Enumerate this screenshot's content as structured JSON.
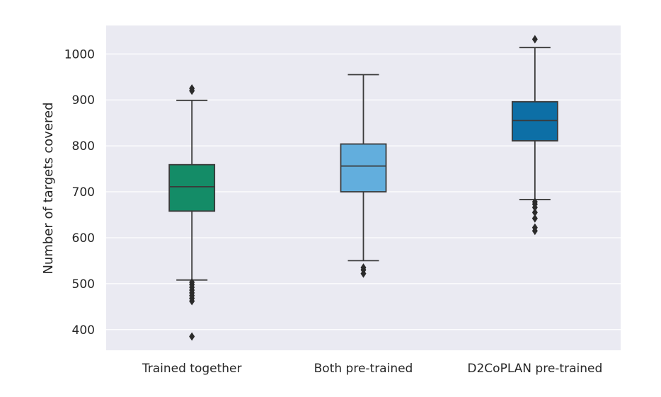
{
  "chart_data": {
    "type": "box",
    "title": "",
    "xlabel": "",
    "ylabel": "Number of targets covered",
    "ylim": [
      355,
      1062
    ],
    "yticks": [
      400,
      500,
      600,
      700,
      800,
      900,
      1000
    ],
    "grid": true,
    "legend": "none",
    "categories": [
      "Trained together",
      "Both pre-trained",
      "D2CoPLAN pre-trained"
    ],
    "boxes": [
      {
        "category": "Trained together",
        "whisker_low": 508,
        "q1": 658,
        "median": 711,
        "q3": 759,
        "whisker_high": 899,
        "outliers": [
          385,
          462,
          468,
          474,
          480,
          486,
          492,
          498,
          503,
          920,
          925
        ],
        "color": "#148c67"
      },
      {
        "category": "Both pre-trained",
        "whisker_low": 550,
        "q1": 700,
        "median": 756,
        "q3": 804,
        "whisker_high": 955,
        "outliers": [
          522,
          530,
          535
        ],
        "color": "#62aedd"
      },
      {
        "category": "D2CoPLAN pre-trained",
        "whisker_low": 683,
        "q1": 811,
        "median": 855,
        "q3": 896,
        "whisker_high": 1014,
        "outliers": [
          615,
          622,
          642,
          655,
          666,
          673,
          678,
          1032
        ],
        "color": "#0d6fa6"
      }
    ],
    "colors": {
      "background": "#eaeaf2",
      "grid": "#ffffff",
      "line": "#3a3a3a"
    }
  }
}
